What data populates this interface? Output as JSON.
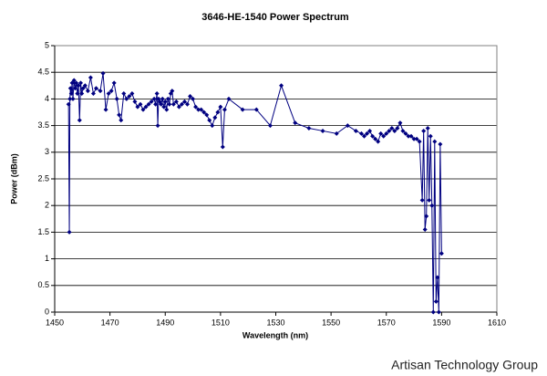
{
  "chart_data": {
    "type": "line",
    "title": "3646-HE-1540 Power Spectrum",
    "x_label": "Wavelength (nm)",
    "y_label": "Power (dBm)",
    "x": [
      1455.0,
      1455.3,
      1455.5,
      1455.7,
      1456,
      1456.3,
      1456.6,
      1457,
      1457.4,
      1457.8,
      1458.2,
      1458.6,
      1459,
      1459.4,
      1459.8,
      1460.3,
      1461,
      1462,
      1463,
      1464,
      1465,
      1466.5,
      1467.5,
      1468.5,
      1469.5,
      1470.5,
      1471.5,
      1472.5,
      1473.3,
      1474,
      1475,
      1476,
      1477,
      1478,
      1479,
      1480,
      1481,
      1482,
      1483,
      1484,
      1485,
      1486,
      1486.5,
      1487,
      1487.3,
      1487.6,
      1488,
      1488.5,
      1489,
      1489.5,
      1490,
      1490.5,
      1491,
      1491.5,
      1492,
      1492.5,
      1493,
      1494,
      1495,
      1496,
      1497,
      1498,
      1499,
      1500,
      1501,
      1502,
      1503,
      1504,
      1505,
      1506,
      1507,
      1508,
      1509,
      1510,
      1510.8,
      1511.5,
      1513,
      1518,
      1523,
      1528,
      1532,
      1537,
      1542,
      1547,
      1552,
      1556,
      1559,
      1561,
      1562,
      1563,
      1564,
      1565,
      1566,
      1567,
      1568,
      1569,
      1570,
      1571,
      1572,
      1573,
      1574,
      1575,
      1576,
      1577,
      1578,
      1579,
      1580,
      1581,
      1582,
      1583,
      1583.5,
      1584,
      1584.5,
      1585,
      1585.5,
      1586,
      1586.5,
      1587,
      1587.5,
      1588,
      1588.5,
      1589,
      1589.5,
      1590
    ],
    "values": [
      3.9,
      1.5,
      4.0,
      4.2,
      4.1,
      4.3,
      4.0,
      4.35,
      4.2,
      4.3,
      4.1,
      4.25,
      3.6,
      4.3,
      4.1,
      4.2,
      4.25,
      4.15,
      4.4,
      4.1,
      4.2,
      4.15,
      4.48,
      3.8,
      4.1,
      4.15,
      4.3,
      4.0,
      3.7,
      3.6,
      4.1,
      4.0,
      4.05,
      4.1,
      3.95,
      3.85,
      3.9,
      3.8,
      3.85,
      3.9,
      3.95,
      4.0,
      3.9,
      4.1,
      3.5,
      4.0,
      3.95,
      3.9,
      4.0,
      3.85,
      3.95,
      3.8,
      4.0,
      3.9,
      4.1,
      4.15,
      3.9,
      3.95,
      3.85,
      3.9,
      3.95,
      3.9,
      4.05,
      4.0,
      3.85,
      3.8,
      3.8,
      3.75,
      3.7,
      3.6,
      3.5,
      3.65,
      3.75,
      3.85,
      3.1,
      3.8,
      4.0,
      3.8,
      3.8,
      3.5,
      4.25,
      3.55,
      3.45,
      3.4,
      3.35,
      3.5,
      3.4,
      3.35,
      3.3,
      3.35,
      3.4,
      3.3,
      3.25,
      3.2,
      3.35,
      3.3,
      3.35,
      3.4,
      3.45,
      3.4,
      3.45,
      3.55,
      3.4,
      3.35,
      3.3,
      3.3,
      3.25,
      3.25,
      3.2,
      2.1,
      3.4,
      1.55,
      1.8,
      3.45,
      2.1,
      3.3,
      2.0,
      0.0,
      3.2,
      0.2,
      0.65,
      0.0,
      3.15,
      1.1
    ],
    "color": "#000080",
    "xlim": [
      1450,
      1610
    ],
    "xticks": [
      1450,
      1470,
      1490,
      1510,
      1530,
      1550,
      1570,
      1590,
      1610
    ],
    "ylim": [
      0,
      5
    ],
    "yticks": [
      0,
      0.5,
      1,
      1.5,
      2,
      2.5,
      3,
      3.5,
      4,
      4.5,
      5
    ],
    "grid": true
  },
  "footer": "Artisan Technology Group"
}
